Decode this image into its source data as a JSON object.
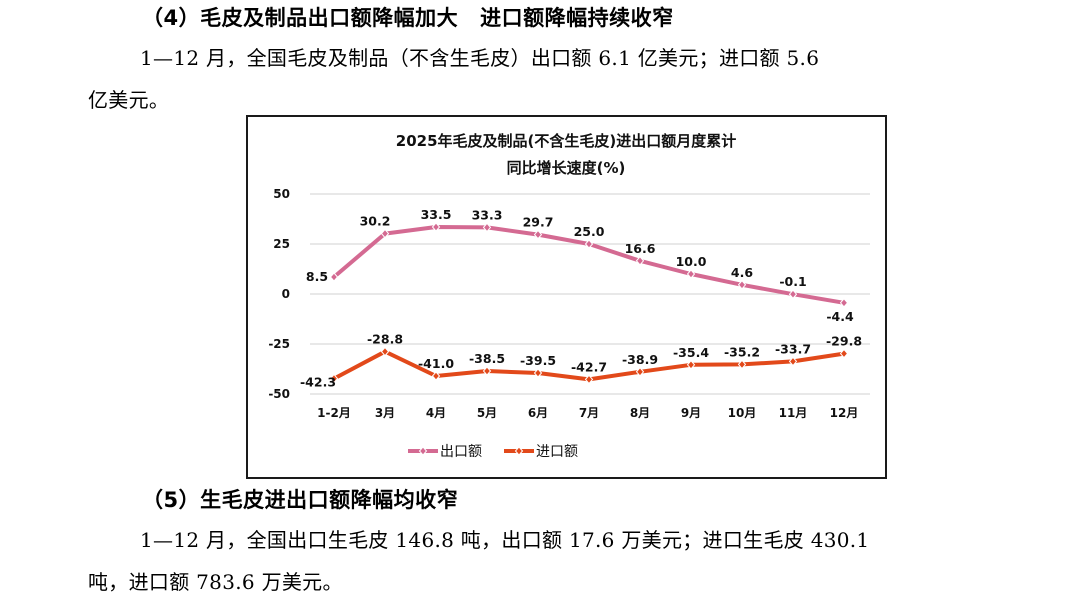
{
  "section4": {
    "heading_part1": "（4）毛皮及制品出口额降幅加大",
    "heading_part2": "进口额降幅持续收窄",
    "paragraph_line1": "1—12 月，全国毛皮及制品（不含生毛皮）出口额 6.1 亿美元；进口额 5.6",
    "paragraph_line2": "亿美元。"
  },
  "section5": {
    "heading": "（5）生毛皮进出口额降幅均收窄",
    "paragraph_line1": "1—12 月，全国出口生毛皮 146.8 吨，出口额 17.6 万美元；进口生毛皮 430.1",
    "paragraph_line2": "吨，进口额 783.6 万美元。"
  },
  "chart_data": {
    "type": "line",
    "title": "2025年毛皮及制品(不含生毛皮)进出口额月度累计",
    "subtitle": "同比增长速度(%)",
    "xlabel": "",
    "ylabel": "",
    "categories": [
      "1-2月",
      "3月",
      "4月",
      "5月",
      "6月",
      "7月",
      "8月",
      "9月",
      "10月",
      "11月",
      "12月"
    ],
    "ylim": [
      -50,
      50
    ],
    "yticks": [
      50,
      25,
      0,
      -25,
      -50
    ],
    "grid": true,
    "legend_position": "bottom",
    "series": [
      {
        "name": "出口额",
        "color": "#D46A92",
        "values": [
          8.5,
          30.2,
          33.5,
          33.3,
          29.7,
          25.0,
          16.6,
          10.0,
          4.6,
          -0.1,
          -4.4
        ],
        "labels": [
          "8.5",
          "30.2",
          "33.5",
          "33.3",
          "29.7",
          "25.0",
          "16.6",
          "10.0",
          "4.6",
          "-0.1",
          "-4.4"
        ]
      },
      {
        "name": "进口额",
        "color": "#E2491A",
        "values": [
          -42.3,
          -28.8,
          -41.0,
          -38.5,
          -39.5,
          -42.7,
          -38.9,
          -35.4,
          -35.2,
          -33.7,
          -29.8
        ],
        "labels": [
          "-42.3",
          "-28.8",
          "-41.0",
          "-38.5",
          "-39.5",
          "-42.7",
          "-38.9",
          "-35.4",
          "-35.2",
          "-33.7",
          "-29.8"
        ]
      }
    ]
  }
}
